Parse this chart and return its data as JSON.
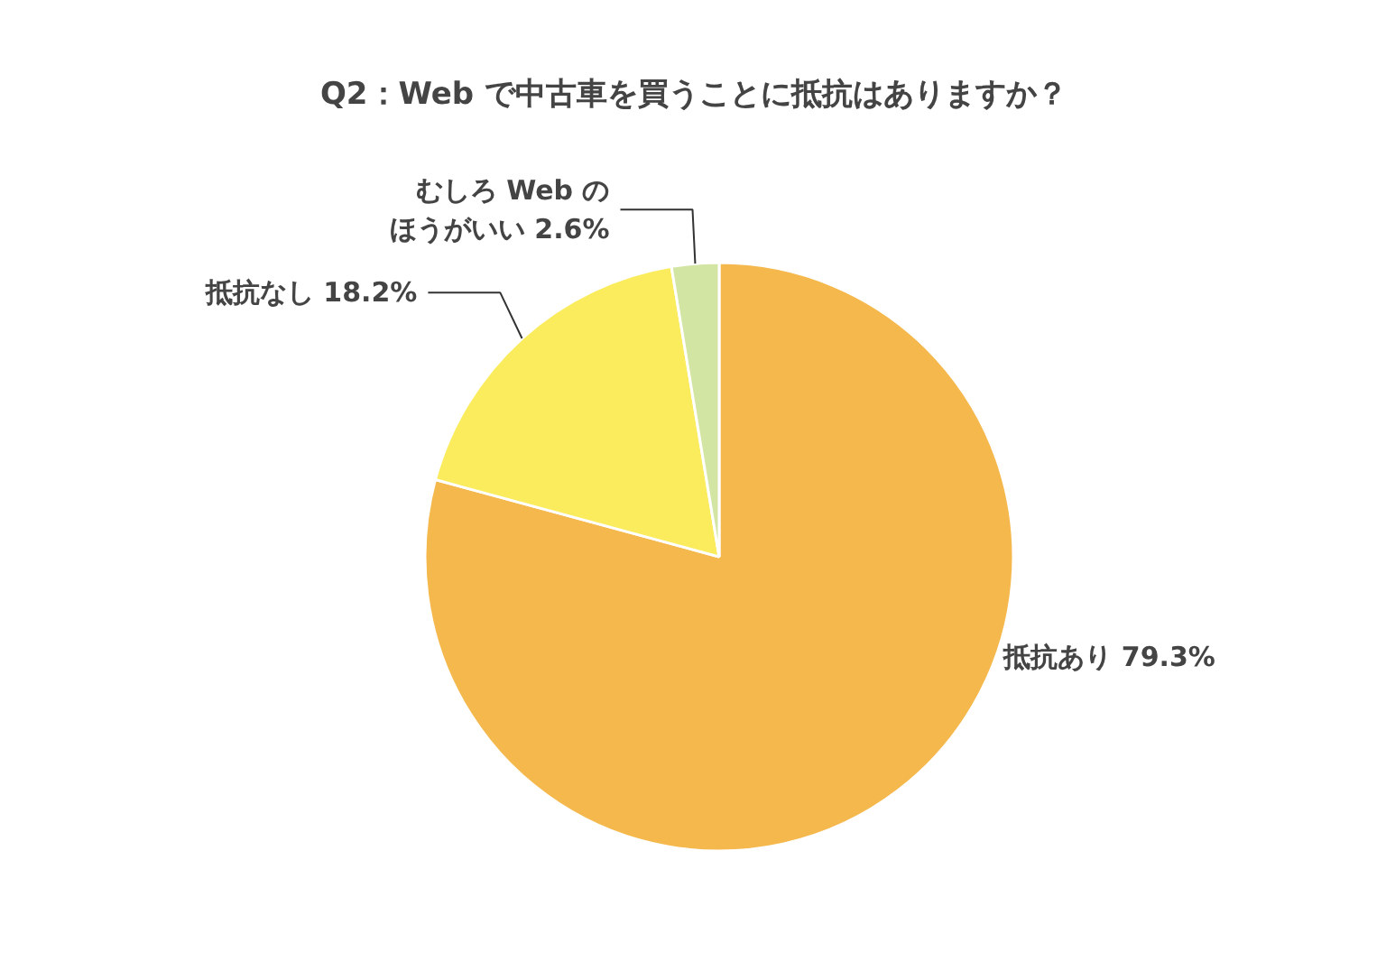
{
  "chart_data": {
    "type": "pie",
    "title": "Q2：Web で中古車を買うことに抵抗はありますか？",
    "categories": [
      "抵抗あり",
      "抵抗なし",
      "むしろ Web のほうがいい"
    ],
    "values": [
      79.3,
      18.2,
      2.6
    ],
    "value_labels": [
      "79.3%",
      "18.2%",
      "2.6%"
    ],
    "colors": [
      "#f5b84c",
      "#faec5c",
      "#d2e5a3"
    ]
  }
}
